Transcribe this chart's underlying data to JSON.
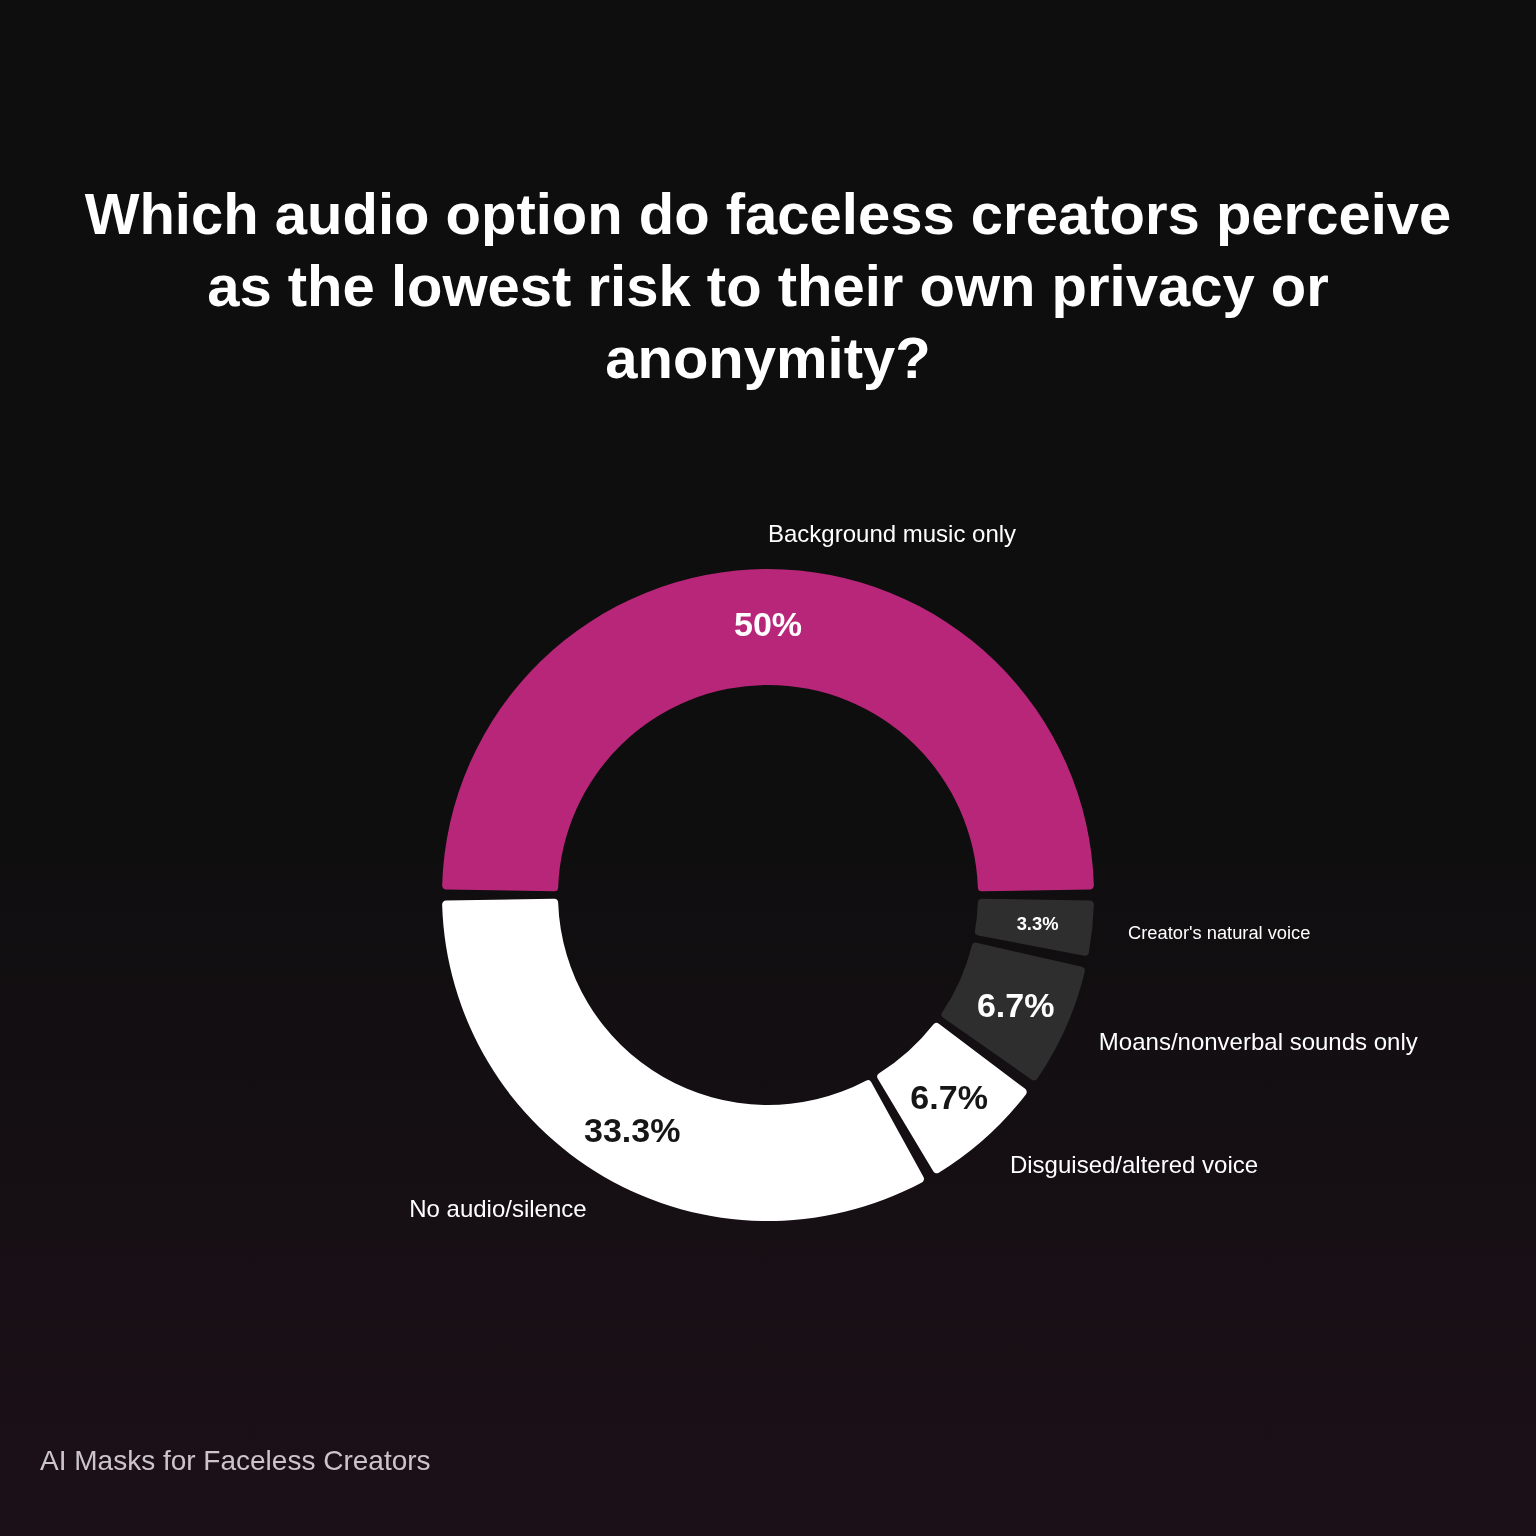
{
  "chart_data": {
    "type": "donut",
    "title": "Which audio option do faceless creators perceive as the lowest risk to their own privacy or anonymity?",
    "categories": [
      "Background music only",
      "Creator's natural voice",
      "Moans/nonverbal sounds only",
      "Disguised/altered voice",
      "No audio/silence"
    ],
    "values": [
      50,
      3.3,
      6.7,
      6.7,
      33.3
    ],
    "colors": [
      "#b8267a",
      "#2e2e2e",
      "#2e2e2e",
      "#ffffff",
      "#ffffff"
    ],
    "value_labels": [
      "50%",
      "3.3%",
      "6.7%",
      "6.7%",
      "33.3%"
    ],
    "annotations": [
      "AI Masks for Faceless Creators"
    ]
  }
}
